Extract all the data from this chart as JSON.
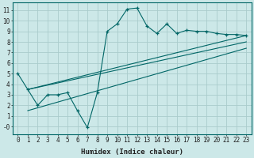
{
  "xlabel": "Humidex (Indice chaleur)",
  "bg_color": "#cce8e8",
  "grid_color": "#aacccc",
  "line_color": "#006666",
  "xlim": [
    -0.5,
    23.5
  ],
  "ylim": [
    -0.7,
    11.7
  ],
  "xticks": [
    0,
    1,
    2,
    3,
    4,
    5,
    6,
    7,
    8,
    9,
    10,
    11,
    12,
    13,
    14,
    15,
    16,
    17,
    18,
    19,
    20,
    21,
    22,
    23
  ],
  "yticks": [
    0,
    1,
    2,
    3,
    4,
    5,
    6,
    7,
    8,
    9,
    10,
    11
  ],
  "ytick_labels": [
    "-0",
    "1",
    "2",
    "3",
    "4",
    "5",
    "6",
    "7",
    "8",
    "9",
    "10",
    "11"
  ],
  "main_series_x": [
    0,
    1,
    2,
    3,
    4,
    5,
    6,
    7,
    8,
    9,
    10,
    11,
    12,
    13,
    14,
    15,
    16,
    17,
    18,
    19,
    20,
    21,
    22,
    23
  ],
  "main_series_y": [
    5.0,
    3.5,
    2.0,
    3.0,
    3.0,
    3.2,
    1.5,
    -0.1,
    3.2,
    9.0,
    9.7,
    11.1,
    11.2,
    9.5,
    8.8,
    9.7,
    8.8,
    9.1,
    9.0,
    9.0,
    8.8,
    8.7,
    8.7,
    8.6
  ],
  "trend_lines": [
    {
      "x": [
        1,
        23
      ],
      "y": [
        3.5,
        8.6
      ]
    },
    {
      "x": [
        1,
        23
      ],
      "y": [
        3.5,
        8.0
      ]
    },
    {
      "x": [
        1,
        23
      ],
      "y": [
        1.5,
        7.4
      ]
    }
  ],
  "tick_fontsize": 5.5,
  "xlabel_fontsize": 6.5
}
